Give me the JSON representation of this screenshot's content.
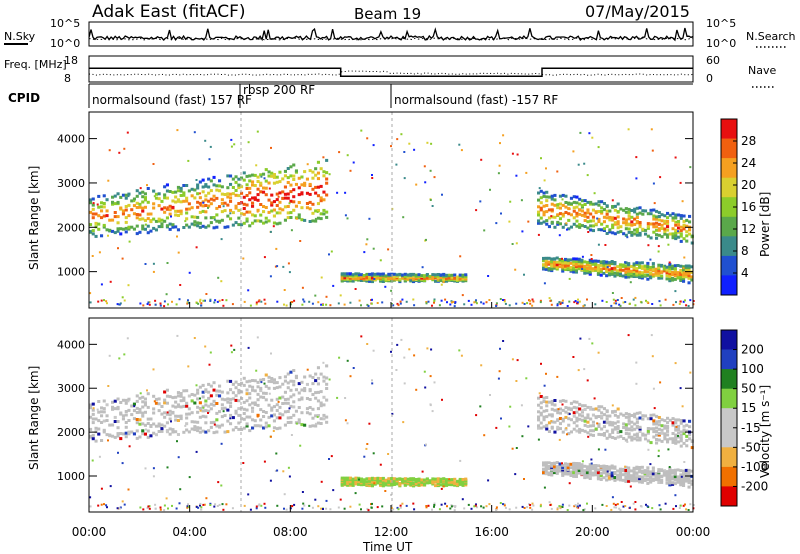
{
  "header": {
    "station": "Adak East (fitACF)",
    "beam": "Beam 19",
    "date": "07/May/2015"
  },
  "colors": {
    "power_scale": [
      "#1020ff",
      "#2050d0",
      "#3a8a8a",
      "#5aa84a",
      "#8ccc2a",
      "#d9d030",
      "#f5a020",
      "#f06010",
      "#e81010"
    ],
    "velocity_scale": [
      "#e00000",
      "#f07000",
      "#f0b040",
      "#c8c8c8",
      "#c8c8c8",
      "#80d040",
      "#208020",
      "#2040c0",
      "#1010a0"
    ],
    "ground_scatter": "#bebebe"
  },
  "chart_data": [
    {
      "type": "line",
      "panel": "noise",
      "ylabel_left": "N.Sky",
      "ylabel_right": "N.Search",
      "left_ticks": [
        "10^5",
        "10^0"
      ],
      "right_ticks": [
        "10^5",
        "10^0"
      ]
    },
    {
      "type": "line",
      "panel": "frequency",
      "ylabel_left": "Freq. [MHz]",
      "ylabel_right": "Nave",
      "left_ticks": [
        "18",
        "8"
      ],
      "right_ticks": [
        "60",
        "0"
      ],
      "freq_segments": [
        {
          "x0": 0.0,
          "x1": 10.0,
          "y": 13.5
        },
        {
          "x0": 10.0,
          "x1": 18.0,
          "y": 10.4
        },
        {
          "x0": 18.0,
          "x1": 24.0,
          "y": 13.5
        }
      ]
    },
    {
      "type": "table",
      "panel": "cpid",
      "label": "CPID",
      "segments": [
        {
          "start": 0.0,
          "text": "normalsound (fast) 157 RF"
        },
        {
          "start": 6.0,
          "text": "rbsp 200 RF"
        },
        {
          "start": 12.0,
          "text": "normalsound (fast) -157 RF"
        }
      ]
    },
    {
      "type": "heatmap",
      "panel": "power",
      "ylabel": "Slant Range [km]",
      "yticks": [
        "1000",
        "2000",
        "3000",
        "4000"
      ],
      "ylim": [
        180,
        4600
      ],
      "colorbar_label": "Power [dB]",
      "colorbar_ticks": [
        "4",
        "8",
        "12",
        "16",
        "20",
        "24",
        "28"
      ],
      "regions": [
        {
          "t0": 0.0,
          "t1": 9.4,
          "r_low_start": 1750,
          "r_low_end": 2100,
          "r_high_start": 2650,
          "r_high_end": 3500
        },
        {
          "t0": 10.0,
          "t1": 15.0,
          "r_low_start": 740,
          "r_low_end": 740,
          "r_high_start": 920,
          "r_high_end": 900
        },
        {
          "t0": 17.8,
          "t1": 24.0,
          "r_low_start": 2000,
          "r_low_end": 1600,
          "r_high_start": 2800,
          "r_high_end": 2200
        },
        {
          "t0": 18.0,
          "t1": 24.0,
          "r_low_start": 1000,
          "r_low_end": 700,
          "r_high_start": 1300,
          "r_high_end": 1100
        }
      ]
    },
    {
      "type": "heatmap",
      "panel": "velocity",
      "ylabel": "Slant Range [km]",
      "yticks": [
        "1000",
        "2000",
        "3000",
        "4000"
      ],
      "ylim": [
        180,
        4600
      ],
      "colorbar_label": "Velocity [m s⁻¹]",
      "colorbar_ticks": [
        "200",
        "100",
        "50",
        "15",
        "-15",
        "-50",
        "-100",
        "-200"
      ],
      "xlabel": "Time UT",
      "xticks": [
        "00:00",
        "04:00",
        "08:00",
        "12:00",
        "16:00",
        "20:00",
        "00:00"
      ],
      "xlim": [
        0,
        24
      ]
    }
  ]
}
